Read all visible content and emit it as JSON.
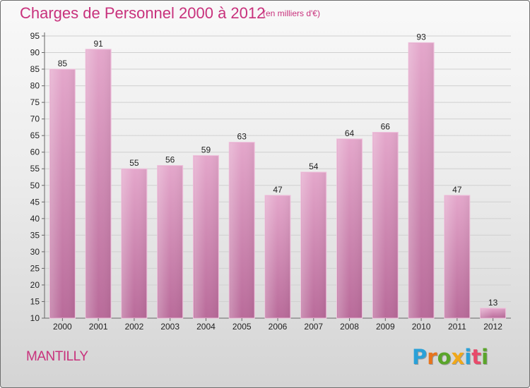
{
  "title": "Charges de Personnel 2000 à 2012",
  "subtitle": "(en milliers d'€)",
  "town": "MANTILLY",
  "logo": {
    "letters": [
      "P",
      "r",
      "o",
      "x",
      "i",
      "t",
      "i"
    ],
    "colors": [
      "#2aa1d8",
      "#e8741c",
      "#5aa52a",
      "#f0a81a",
      "#2aa1d8",
      "#e84a6a",
      "#5aa52a"
    ]
  },
  "colors": {
    "bar_fill": "#d78fba",
    "bar_edge": "#eec2dc",
    "text_accent": "#c8317c"
  },
  "chart_data": {
    "type": "bar",
    "title": "Charges de Personnel 2000 à 2012",
    "subtitle": "(en milliers d'€)",
    "categories": [
      "2000",
      "2001",
      "2002",
      "2003",
      "2004",
      "2005",
      "2006",
      "2007",
      "2008",
      "2009",
      "2010",
      "2011",
      "2012"
    ],
    "values": [
      85,
      91,
      55,
      56,
      59,
      63,
      47,
      54,
      64,
      66,
      93,
      47,
      13
    ],
    "ylim": [
      10,
      95
    ],
    "yticks": [
      10,
      15,
      20,
      25,
      30,
      35,
      40,
      45,
      50,
      55,
      60,
      65,
      70,
      75,
      80,
      85,
      90,
      95
    ],
    "grid": true,
    "legend": "none"
  }
}
